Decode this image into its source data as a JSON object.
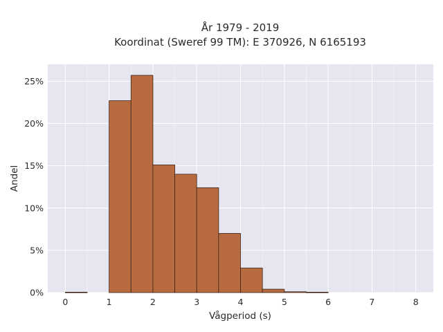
{
  "chart_data": {
    "type": "bar",
    "title_line1": "År 1979 - 2019",
    "title_line2": "Koordinat (Sweref 99 TM): E 370926, N 6165193",
    "xlabel": "Vågperiod (s)",
    "ylabel": "Andel",
    "bin_width": 0.5,
    "bins": [
      {
        "x0": 0.0,
        "value": 0.05
      },
      {
        "x0": 0.5,
        "value": 0.0
      },
      {
        "x0": 1.0,
        "value": 22.7
      },
      {
        "x0": 1.5,
        "value": 25.7
      },
      {
        "x0": 2.0,
        "value": 15.1
      },
      {
        "x0": 2.5,
        "value": 14.0
      },
      {
        "x0": 3.0,
        "value": 12.4
      },
      {
        "x0": 3.5,
        "value": 7.0
      },
      {
        "x0": 4.0,
        "value": 2.9
      },
      {
        "x0": 4.5,
        "value": 0.4
      },
      {
        "x0": 5.0,
        "value": 0.1
      },
      {
        "x0": 5.5,
        "value": 0.05
      }
    ],
    "xlim": [
      -0.4,
      8.4
    ],
    "ylim": [
      0,
      27
    ],
    "x_ticks": [
      0,
      1,
      2,
      3,
      4,
      5,
      6,
      7,
      8
    ],
    "x_tick_labels": [
      "0",
      "1",
      "2",
      "3",
      "4",
      "5",
      "6",
      "7",
      "8"
    ],
    "y_ticks": [
      0,
      5,
      10,
      15,
      20,
      25
    ],
    "y_tick_labels": [
      "0%",
      "5%",
      "10%",
      "15%",
      "20%",
      "25%"
    ],
    "grid": true,
    "colors": {
      "bar_fill": "#b86b40",
      "bar_stroke": "#3b2418",
      "plot_bg": "#e5e6ef",
      "grid": "#ffffff"
    }
  }
}
